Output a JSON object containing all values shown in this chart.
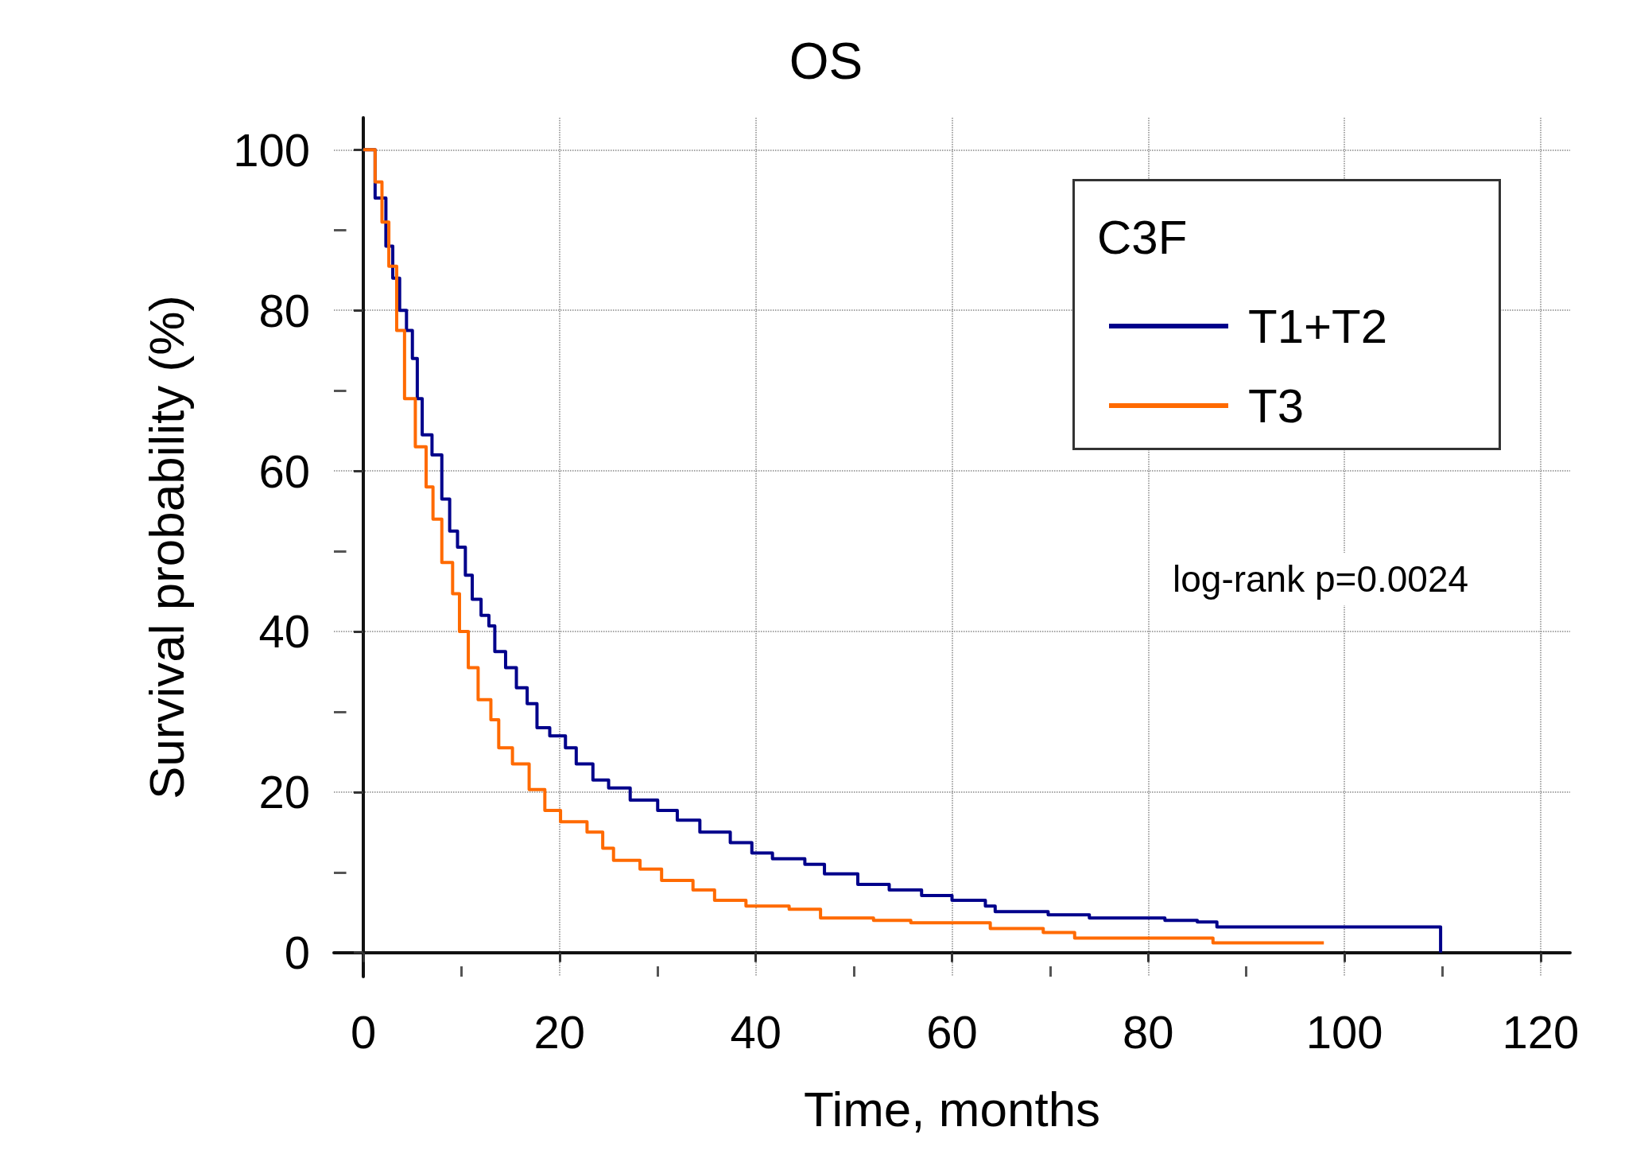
{
  "chart_data": {
    "type": "step",
    "title": "OS",
    "xlabel": "Time, months",
    "ylabel": "Survival probability (%)",
    "legend_title": "C3F",
    "xlim": [
      -3,
      123
    ],
    "ylim": [
      -3,
      104
    ],
    "xticks": [
      0,
      20,
      40,
      60,
      80,
      100,
      120
    ],
    "yticks": [
      0,
      20,
      40,
      60,
      80,
      100
    ],
    "grid": true,
    "legend": "top right",
    "marker": "none",
    "line_style": "solid",
    "annotations": [
      "log-rank p=0.0024"
    ],
    "series": [
      {
        "name": "T1+T2",
        "color": "#00008b",
        "x": [
          0,
          1.2,
          2.3,
          3,
          3.7,
          4.4,
          5,
          5.5,
          6,
          7,
          8,
          8.8,
          9.6,
          10.4,
          11.1,
          12,
          12.8,
          13.4,
          14.5,
          15.6,
          16.7,
          17.7,
          19,
          20.6,
          21.7,
          23.4,
          25,
          27.2,
          30,
          32,
          34.3,
          37.4,
          39.6,
          41.7,
          45,
          47,
          50.4,
          53.6,
          56.9,
          60,
          63.4,
          64.4,
          69.8,
          74,
          81.7,
          85,
          87,
          109.8,
          109.8
        ],
        "values": [
          100,
          94,
          88,
          84,
          80,
          77.5,
          74,
          69,
          64.5,
          62,
          56.5,
          52.5,
          50.5,
          47,
          44,
          42,
          40.7,
          37.5,
          35.5,
          33,
          31,
          28,
          27,
          25.5,
          23.5,
          21.5,
          20.5,
          19,
          17.7,
          16.5,
          15,
          13.7,
          12.4,
          11.7,
          11,
          9.8,
          8.5,
          7.8,
          7.1,
          6.5,
          5.8,
          5.1,
          4.7,
          4.3,
          4,
          3.8,
          3.2,
          3.2,
          0
        ]
      },
      {
        "name": "T3",
        "color": "#ff6a00",
        "x": [
          0,
          1.2,
          1.9,
          2.6,
          3.4,
          4.2,
          5.3,
          6.4,
          7.1,
          8,
          9.1,
          9.8,
          10.7,
          11.7,
          13,
          13.8,
          15.2,
          16.9,
          18.5,
          20.1,
          22.8,
          24.4,
          25.5,
          28.2,
          30.4,
          33.6,
          35.8,
          39,
          43.4,
          46.6,
          52,
          55.8,
          63.9,
          69.3,
          72.5,
          86.6,
          97.9
        ],
        "values": [
          100,
          96,
          91,
          85.5,
          77.5,
          69,
          63,
          58,
          54,
          48.6,
          44.7,
          40,
          35.5,
          31.5,
          29,
          25.5,
          23.5,
          20.3,
          17.7,
          16.3,
          15,
          13,
          11.5,
          10.4,
          9,
          7.8,
          6.5,
          5.8,
          5.4,
          4.3,
          4,
          3.7,
          3,
          2.5,
          1.8,
          1.2,
          1.2
        ]
      }
    ]
  }
}
